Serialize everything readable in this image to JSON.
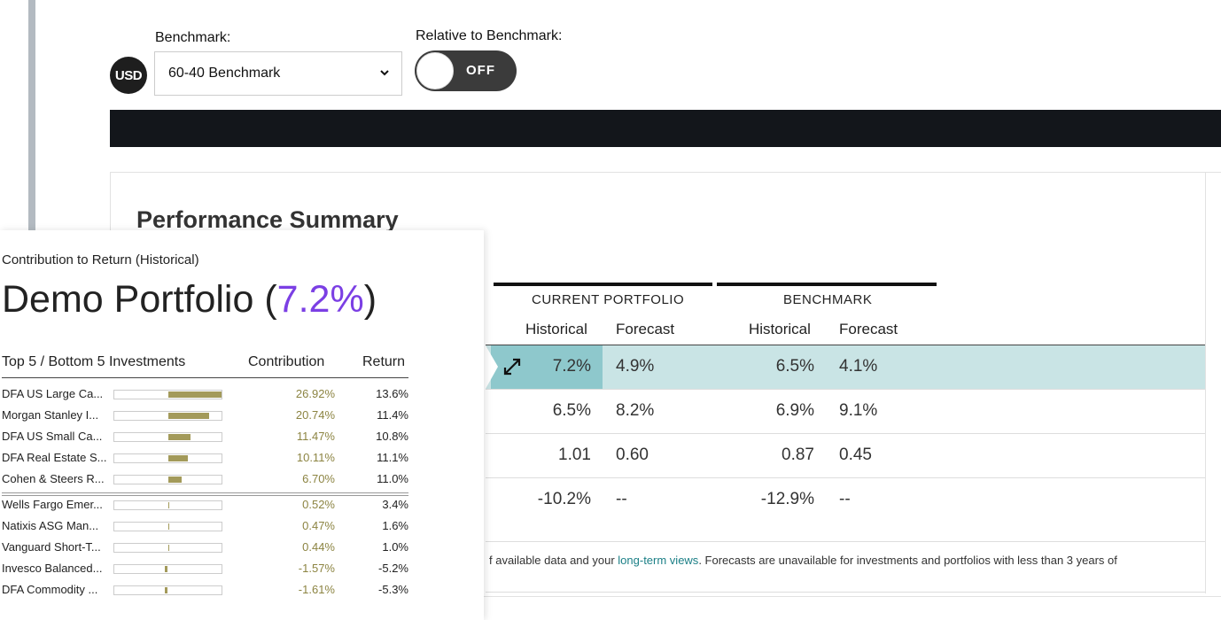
{
  "controls": {
    "benchmark_label": "Benchmark:",
    "currency_badge": "USD",
    "benchmark_selected": "60-40 Benchmark",
    "relative_label": "Relative to Benchmark:",
    "toggle_state": "OFF"
  },
  "summary": {
    "title": "Performance Summary",
    "groups": [
      "CURRENT PORTFOLIO",
      "BENCHMARK"
    ],
    "col_heads": [
      "Historical",
      "Forecast",
      "Historical",
      "Forecast"
    ],
    "rows": [
      [
        "7.2%",
        "4.9%",
        "6.5%",
        "4.1%"
      ],
      [
        "6.5%",
        "8.2%",
        "6.9%",
        "9.1%"
      ],
      [
        "1.01",
        "0.60",
        "0.87",
        "0.45"
      ],
      [
        "-10.2%",
        "--",
        "-12.9%",
        "--"
      ]
    ],
    "footer_pre": "f available data and your ",
    "footer_link": "long-term views",
    "footer_post": ". Forecasts are unavailable for investments and portfolios with less than 3 years of"
  },
  "panel": {
    "subtitle": "Contribution to Return (Historical)",
    "title_main": "Demo Portfolio (",
    "title_pct": "7.2%",
    "title_close": ")",
    "headers": [
      "Top 5 / Bottom 5 Investments",
      "Contribution",
      "Return"
    ],
    "top": [
      {
        "name": "DFA US Large Ca...",
        "contribution": "26.92%",
        "return": "13.6%",
        "share": 0.5
      },
      {
        "name": "Morgan Stanley I...",
        "contribution": "20.74%",
        "return": "11.4%",
        "share": 0.385
      },
      {
        "name": "DFA US Small Ca...",
        "contribution": "11.47%",
        "return": "10.8%",
        "share": 0.213
      },
      {
        "name": "DFA Real Estate S...",
        "contribution": "10.11%",
        "return": "11.1%",
        "share": 0.188
      },
      {
        "name": "Cohen & Steers R...",
        "contribution": "6.70%",
        "return": "11.0%",
        "share": 0.125
      }
    ],
    "bottom": [
      {
        "name": "Wells Fargo Emer...",
        "contribution": "0.52%",
        "return": "3.4%",
        "share": 0.01
      },
      {
        "name": "Natixis ASG Man...",
        "contribution": "0.47%",
        "return": "1.6%",
        "share": 0.009
      },
      {
        "name": "Vanguard Short-T...",
        "contribution": "0.44%",
        "return": "1.0%",
        "share": 0.008
      },
      {
        "name": "Invesco Balanced...",
        "contribution": "-1.57%",
        "return": "-5.2%",
        "share": -0.029
      },
      {
        "name": "DFA Commodity ...",
        "contribution": "-1.61%",
        "return": "-5.3%",
        "share": -0.03
      }
    ]
  },
  "colors": {
    "accent": "#7b3fe4",
    "bar": "#a39a5a",
    "highlight": "#c9e4e5",
    "highlight_cell": "#8ec8cc",
    "link": "#1b7f86"
  }
}
